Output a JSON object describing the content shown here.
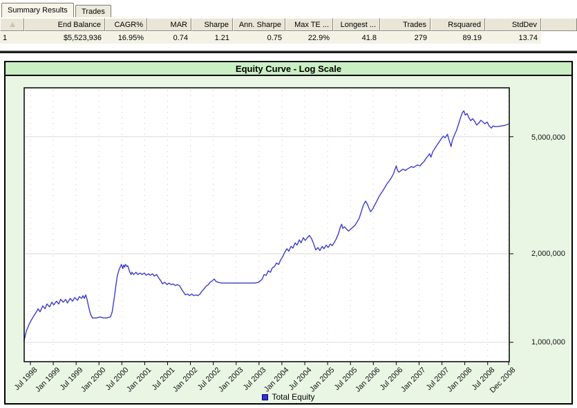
{
  "tab_bar": {
    "tabs": [
      {
        "label": "Summary Results",
        "active": true
      },
      {
        "label": "Trades",
        "active": false
      }
    ]
  },
  "results_table": {
    "columns": [
      "",
      "End Balance",
      "CAGR%",
      "MAR",
      "Sharpe",
      "Ann. Sharpe",
      "Max TE ...",
      "Longest ...",
      "Trades",
      "Rsquared",
      "StdDev"
    ],
    "rows": [
      [
        "1",
        "$5,523,936",
        "16.95%",
        "0.74",
        "1.21",
        "0.75",
        "22.9%",
        "41.8",
        "279",
        "89.19",
        "13.74"
      ]
    ]
  },
  "chart": {
    "title": "Equity Curve - Log Scale",
    "legend": [
      {
        "label": "Total Equity",
        "color": "#3b3bd1"
      }
    ],
    "panel_color": "#eaf6e4",
    "title_band_color": "#c9efc3"
  },
  "chart_data": {
    "type": "line",
    "title": "Equity Curve - Log Scale",
    "y_scale": "log",
    "y_unit": "USD",
    "series_value_unit": "millions of USD",
    "grid": "vertical-dotted at each x tick, horizontal-solid at y ticks",
    "legend_position": "bottom-center",
    "x_range": [
      1998.36,
      2008.97
    ],
    "y_ticks": [
      {
        "label": "5,000,000",
        "value": 5
      },
      {
        "label": "2,000,000",
        "value": 2
      },
      {
        "label": "1,000,000",
        "value": 1
      }
    ],
    "x_ticks": [
      {
        "label": "Jul 1998",
        "t": 1998.5
      },
      {
        "label": "Jan 1999",
        "t": 1999.0
      },
      {
        "label": "Jul 1999",
        "t": 1999.5
      },
      {
        "label": "Jan 2000",
        "t": 2000.0
      },
      {
        "label": "Jul 2000",
        "t": 2000.5
      },
      {
        "label": "Jan 2001",
        "t": 2001.0
      },
      {
        "label": "Jul 2001",
        "t": 2001.5
      },
      {
        "label": "Jan 2002",
        "t": 2002.0
      },
      {
        "label": "Jul 2002",
        "t": 2002.5
      },
      {
        "label": "Jan 2003",
        "t": 2003.0
      },
      {
        "label": "Jul 2003",
        "t": 2003.5
      },
      {
        "label": "Jan 2004",
        "t": 2004.0
      },
      {
        "label": "Jul 2004",
        "t": 2004.5
      },
      {
        "label": "Jan 2005",
        "t": 2005.0
      },
      {
        "label": "Jul 2005",
        "t": 2005.5
      },
      {
        "label": "Jan 2006",
        "t": 2006.0
      },
      {
        "label": "Jul 2006",
        "t": 2006.5
      },
      {
        "label": "Jan 2007",
        "t": 2007.0
      },
      {
        "label": "Jul 2007",
        "t": 2007.5
      },
      {
        "label": "Jan 2008",
        "t": 2008.0
      },
      {
        "label": "Jul 2008",
        "t": 2008.5
      },
      {
        "label": "Dec 2008",
        "t": 2008.96
      }
    ],
    "series": [
      {
        "name": "Total Equity",
        "color": "#3b3bd1",
        "points": [
          [
            1998.36,
            1.01
          ],
          [
            1998.41,
            1.09
          ],
          [
            1998.47,
            1.15
          ],
          [
            1998.52,
            1.19
          ],
          [
            1998.56,
            1.22
          ],
          [
            1998.62,
            1.26
          ],
          [
            1998.67,
            1.3
          ],
          [
            1998.71,
            1.27
          ],
          [
            1998.77,
            1.33
          ],
          [
            1998.82,
            1.3
          ],
          [
            1998.86,
            1.35
          ],
          [
            1998.92,
            1.32
          ],
          [
            1998.97,
            1.37
          ],
          [
            1999.01,
            1.34
          ],
          [
            1999.07,
            1.38
          ],
          [
            1999.12,
            1.35
          ],
          [
            1999.16,
            1.4
          ],
          [
            1999.22,
            1.37
          ],
          [
            1999.27,
            1.4
          ],
          [
            1999.31,
            1.36
          ],
          [
            1999.37,
            1.41
          ],
          [
            1999.42,
            1.38
          ],
          [
            1999.47,
            1.42
          ],
          [
            1999.53,
            1.39
          ],
          [
            1999.57,
            1.43
          ],
          [
            1999.62,
            1.41
          ],
          [
            1999.65,
            1.44
          ],
          [
            1999.68,
            1.41
          ],
          [
            1999.71,
            1.45
          ],
          [
            1999.74,
            1.4
          ],
          [
            1999.77,
            1.33
          ],
          [
            1999.8,
            1.27
          ],
          [
            1999.83,
            1.23
          ],
          [
            1999.86,
            1.21
          ],
          [
            1999.95,
            1.21
          ],
          [
            2000.02,
            1.22
          ],
          [
            2000.1,
            1.21
          ],
          [
            2000.17,
            1.21
          ],
          [
            2000.25,
            1.22
          ],
          [
            2000.29,
            1.27
          ],
          [
            2000.34,
            1.44
          ],
          [
            2000.37,
            1.56
          ],
          [
            2000.4,
            1.68
          ],
          [
            2000.44,
            1.77
          ],
          [
            2000.47,
            1.81
          ],
          [
            2000.49,
            1.84
          ],
          [
            2000.52,
            1.78
          ],
          [
            2000.54,
            1.83
          ],
          [
            2000.56,
            1.8
          ],
          [
            2000.58,
            1.84
          ],
          [
            2000.61,
            1.81
          ],
          [
            2000.63,
            1.82
          ],
          [
            2000.67,
            1.74
          ],
          [
            2000.7,
            1.7
          ],
          [
            2000.72,
            1.73
          ],
          [
            2000.76,
            1.7
          ],
          [
            2000.81,
            1.73
          ],
          [
            2000.85,
            1.7
          ],
          [
            2000.9,
            1.72
          ],
          [
            2000.94,
            1.7
          ],
          [
            2000.99,
            1.72
          ],
          [
            2001.03,
            1.69
          ],
          [
            2001.08,
            1.71
          ],
          [
            2001.12,
            1.69
          ],
          [
            2001.17,
            1.71
          ],
          [
            2001.21,
            1.68
          ],
          [
            2001.26,
            1.7
          ],
          [
            2001.3,
            1.66
          ],
          [
            2001.35,
            1.62
          ],
          [
            2001.39,
            1.58
          ],
          [
            2001.44,
            1.6
          ],
          [
            2001.49,
            1.57
          ],
          [
            2001.53,
            1.59
          ],
          [
            2001.58,
            1.57
          ],
          [
            2001.62,
            1.58
          ],
          [
            2001.67,
            1.56
          ],
          [
            2001.71,
            1.57
          ],
          [
            2001.76,
            1.56
          ],
          [
            2001.8,
            1.52
          ],
          [
            2001.85,
            1.48
          ],
          [
            2001.89,
            1.45
          ],
          [
            2001.94,
            1.46
          ],
          [
            2001.98,
            1.44
          ],
          [
            2002.03,
            1.46
          ],
          [
            2002.07,
            1.44
          ],
          [
            2002.12,
            1.45
          ],
          [
            2002.16,
            1.44
          ],
          [
            2002.21,
            1.46
          ],
          [
            2002.25,
            1.49
          ],
          [
            2002.3,
            1.52
          ],
          [
            2002.34,
            1.55
          ],
          [
            2002.39,
            1.57
          ],
          [
            2002.43,
            1.6
          ],
          [
            2002.48,
            1.62
          ],
          [
            2002.52,
            1.64
          ],
          [
            2002.56,
            1.61
          ],
          [
            2002.6,
            1.6
          ],
          [
            2002.69,
            1.59
          ],
          [
            2002.81,
            1.59
          ],
          [
            2002.96,
            1.59
          ],
          [
            2003.11,
            1.59
          ],
          [
            2003.26,
            1.59
          ],
          [
            2003.41,
            1.59
          ],
          [
            2003.49,
            1.6
          ],
          [
            2003.57,
            1.64
          ],
          [
            2003.61,
            1.7
          ],
          [
            2003.66,
            1.69
          ],
          [
            2003.7,
            1.75
          ],
          [
            2003.75,
            1.73
          ],
          [
            2003.79,
            1.79
          ],
          [
            2003.84,
            1.81
          ],
          [
            2003.88,
            1.86
          ],
          [
            2003.93,
            1.84
          ],
          [
            2003.97,
            1.9
          ],
          [
            2004.02,
            1.96
          ],
          [
            2004.06,
            2.02
          ],
          [
            2004.11,
            2.08
          ],
          [
            2004.15,
            2.04
          ],
          [
            2004.2,
            2.12
          ],
          [
            2004.24,
            2.09
          ],
          [
            2004.29,
            2.18
          ],
          [
            2004.33,
            2.14
          ],
          [
            2004.38,
            2.23
          ],
          [
            2004.42,
            2.18
          ],
          [
            2004.47,
            2.27
          ],
          [
            2004.51,
            2.22
          ],
          [
            2004.56,
            2.27
          ],
          [
            2004.6,
            2.31
          ],
          [
            2004.65,
            2.25
          ],
          [
            2004.7,
            2.15
          ],
          [
            2004.74,
            2.06
          ],
          [
            2004.79,
            2.1
          ],
          [
            2004.83,
            2.05
          ],
          [
            2004.88,
            2.12
          ],
          [
            2004.92,
            2.08
          ],
          [
            2004.97,
            2.14
          ],
          [
            2005.01,
            2.1
          ],
          [
            2005.06,
            2.16
          ],
          [
            2005.1,
            2.13
          ],
          [
            2005.15,
            2.19
          ],
          [
            2005.19,
            2.25
          ],
          [
            2005.24,
            2.35
          ],
          [
            2005.28,
            2.47
          ],
          [
            2005.31,
            2.52
          ],
          [
            2005.33,
            2.44
          ],
          [
            2005.37,
            2.47
          ],
          [
            2005.42,
            2.42
          ],
          [
            2005.46,
            2.39
          ],
          [
            2005.51,
            2.43
          ],
          [
            2005.55,
            2.46
          ],
          [
            2005.6,
            2.5
          ],
          [
            2005.64,
            2.56
          ],
          [
            2005.69,
            2.64
          ],
          [
            2005.73,
            2.76
          ],
          [
            2005.78,
            2.92
          ],
          [
            2005.83,
            3.02
          ],
          [
            2005.87,
            2.95
          ],
          [
            2005.9,
            2.87
          ],
          [
            2005.94,
            2.78
          ],
          [
            2005.98,
            2.83
          ],
          [
            2006.03,
            2.93
          ],
          [
            2006.08,
            3.03
          ],
          [
            2006.12,
            3.12
          ],
          [
            2006.17,
            3.21
          ],
          [
            2006.21,
            3.28
          ],
          [
            2006.26,
            3.38
          ],
          [
            2006.3,
            3.46
          ],
          [
            2006.35,
            3.54
          ],
          [
            2006.39,
            3.62
          ],
          [
            2006.44,
            3.74
          ],
          [
            2006.47,
            3.86
          ],
          [
            2006.5,
            3.98
          ],
          [
            2006.53,
            3.84
          ],
          [
            2006.56,
            3.79
          ],
          [
            2006.61,
            3.84
          ],
          [
            2006.65,
            3.88
          ],
          [
            2006.7,
            3.84
          ],
          [
            2006.74,
            3.88
          ],
          [
            2006.79,
            3.92
          ],
          [
            2006.83,
            3.96
          ],
          [
            2006.88,
            3.93
          ],
          [
            2006.92,
            3.97
          ],
          [
            2006.97,
            4.01
          ],
          [
            2007.02,
            3.98
          ],
          [
            2007.06,
            4.05
          ],
          [
            2007.11,
            4.12
          ],
          [
            2007.15,
            4.22
          ],
          [
            2007.2,
            4.31
          ],
          [
            2007.23,
            4.38
          ],
          [
            2007.26,
            4.26
          ],
          [
            2007.3,
            4.45
          ],
          [
            2007.35,
            4.57
          ],
          [
            2007.39,
            4.68
          ],
          [
            2007.44,
            4.8
          ],
          [
            2007.48,
            4.91
          ],
          [
            2007.53,
            5.02
          ],
          [
            2007.57,
            4.96
          ],
          [
            2007.62,
            5.1
          ],
          [
            2007.66,
            4.85
          ],
          [
            2007.7,
            4.63
          ],
          [
            2007.73,
            4.87
          ],
          [
            2007.77,
            5.05
          ],
          [
            2007.82,
            5.26
          ],
          [
            2007.86,
            5.5
          ],
          [
            2007.91,
            5.83
          ],
          [
            2007.95,
            6.05
          ],
          [
            2007.98,
            6.12
          ],
          [
            2008.01,
            5.92
          ],
          [
            2008.05,
            6.0
          ],
          [
            2008.09,
            5.8
          ],
          [
            2008.13,
            5.67
          ],
          [
            2008.17,
            5.76
          ],
          [
            2008.22,
            5.63
          ],
          [
            2008.26,
            5.48
          ],
          [
            2008.31,
            5.57
          ],
          [
            2008.35,
            5.69
          ],
          [
            2008.4,
            5.61
          ],
          [
            2008.44,
            5.53
          ],
          [
            2008.49,
            5.61
          ],
          [
            2008.53,
            5.45
          ],
          [
            2008.58,
            5.35
          ],
          [
            2008.62,
            5.44
          ],
          [
            2008.67,
            5.41
          ],
          [
            2008.72,
            5.42
          ],
          [
            2008.77,
            5.43
          ],
          [
            2008.82,
            5.45
          ],
          [
            2008.87,
            5.46
          ],
          [
            2008.91,
            5.49
          ],
          [
            2008.95,
            5.52
          ]
        ]
      }
    ]
  }
}
